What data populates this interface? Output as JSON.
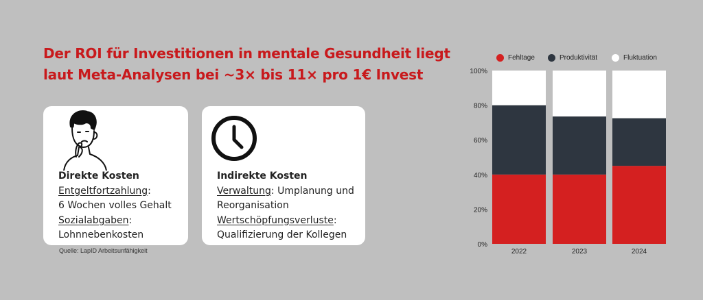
{
  "headline": {
    "line1": "Der ROI für Investitionen in mentale Gesundheit liegt",
    "line2": "laut Meta-Analysen bei ~3× bis 11× pro 1€ Invest"
  },
  "cards": {
    "direct": {
      "icon": "thinking-person-icon",
      "title": "Direkte Kosten",
      "item1_label": "Entgeltfortzahlung",
      "item1_sep": ":",
      "item1_value": "6 Wochen volles Gehalt",
      "item2_label": "Sozialabgaben",
      "item2_sep": ":",
      "item2_value": "Lohnnebenkosten"
    },
    "indirect": {
      "icon": "clock-icon",
      "title": "Indirekte Kosten",
      "item1_label": "Verwaltung",
      "item1_sep": ": Umplanung und",
      "item1_value": "Reorganisation",
      "item2_label": "Wertschöpfungsverluste",
      "item2_sep": ":",
      "item2_value": "Qualifizierung der Kollegen"
    }
  },
  "source": "Quelle: LapID Arbeitsunfähigkeit",
  "chart_data": {
    "type": "bar",
    "stacked": true,
    "categories": [
      "2022",
      "2023",
      "2024"
    ],
    "series": [
      {
        "name": "Fehltage",
        "color": "#d42020",
        "values": [
          40,
          40,
          45
        ]
      },
      {
        "name": "Produktivität",
        "color": "#2e3640",
        "values": [
          40,
          33.5,
          27.5
        ]
      },
      {
        "name": "Fluktuation",
        "color": "#ffffff",
        "values": [
          20,
          26.5,
          27.5
        ]
      }
    ],
    "ylim": [
      0,
      100
    ],
    "yticks": [
      "0%",
      "20%",
      "40%",
      "60%",
      "80%",
      "100%"
    ],
    "legend_position": "top",
    "grid": false
  }
}
